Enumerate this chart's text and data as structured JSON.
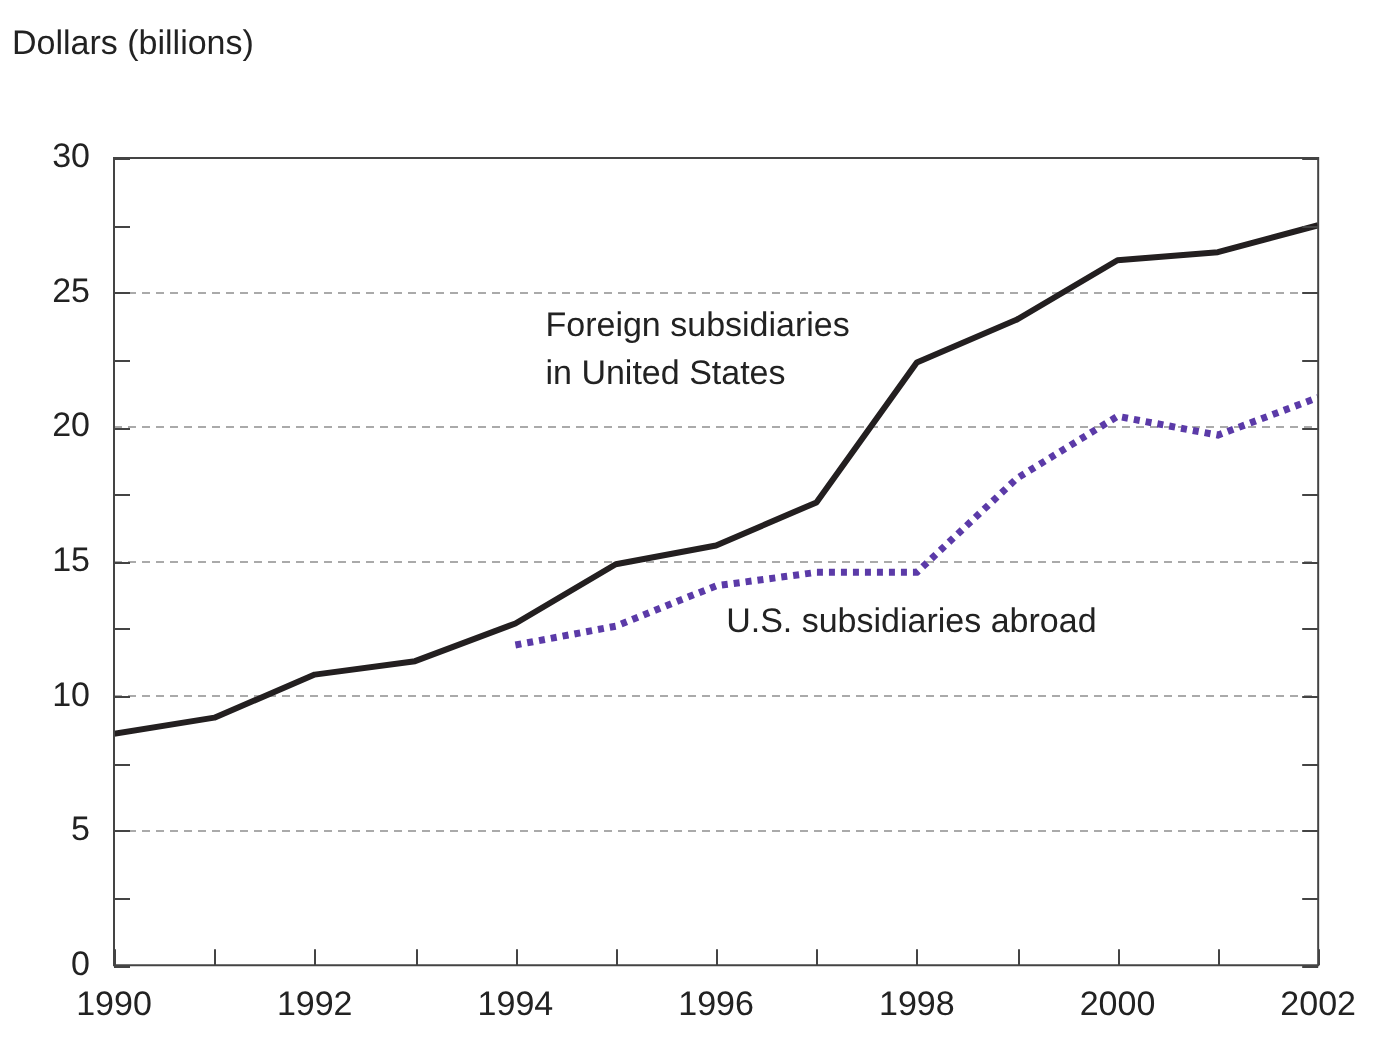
{
  "chart_data": {
    "type": "line",
    "ylabel": "Dollars (billions)",
    "x": [
      1990,
      1991,
      1992,
      1993,
      1994,
      1995,
      1996,
      1997,
      1998,
      1999,
      2000,
      2001,
      2002
    ],
    "series": [
      {
        "name": "Foreign subsidiaries in United States",
        "color": "#231f20",
        "line_style": "solid",
        "values": [
          8.6,
          9.2,
          10.8,
          11.3,
          12.7,
          14.9,
          15.6,
          17.2,
          22.4,
          24.0,
          26.2,
          26.5,
          27.5
        ]
      },
      {
        "name": "U.S. subsidiaries abroad",
        "color": "#5b3aa8",
        "line_style": "dotted",
        "values": [
          null,
          null,
          null,
          null,
          11.9,
          12.6,
          14.1,
          14.6,
          14.6,
          18.1,
          20.4,
          19.7,
          21.1
        ]
      }
    ],
    "xlim": [
      1990,
      2002
    ],
    "xticks": [
      1990,
      {
        "value": 1991,
        "label": null
      },
      1992,
      {
        "value": 1993,
        "label": null
      },
      1994,
      {
        "value": 1995,
        "label": null
      },
      1996,
      {
        "value": 1997,
        "label": null
      },
      1998,
      {
        "value": 1999,
        "label": null
      },
      2000,
      {
        "value": 2001,
        "label": null
      },
      2002
    ],
    "ylim": [
      0,
      30
    ],
    "yticks": [
      0,
      {
        "value": 2.5,
        "label": null
      },
      5,
      {
        "value": 7.5,
        "label": null
      },
      10,
      {
        "value": 12.5,
        "label": null
      },
      15,
      {
        "value": 17.5,
        "label": null
      },
      20,
      {
        "value": 22.5,
        "label": null
      },
      25,
      {
        "value": 27.5,
        "label": null
      },
      30
    ],
    "grid": "y",
    "legend": false,
    "marker": "none"
  }
}
